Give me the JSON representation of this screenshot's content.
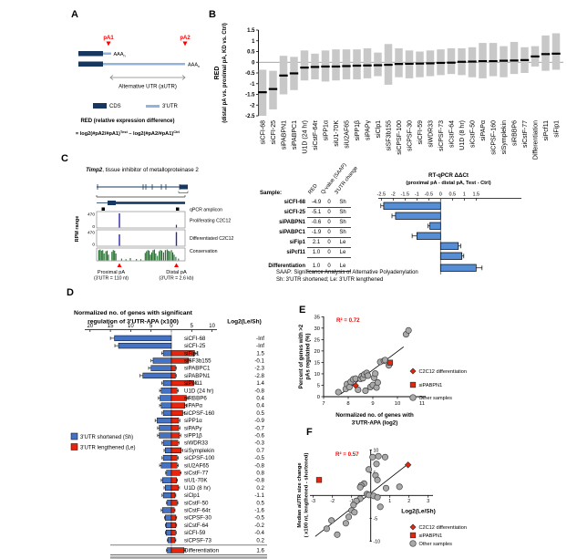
{
  "panels": {
    "A": {
      "label": "A",
      "pA1": "pA1",
      "pA2": "pA2",
      "polyA_base": "AAA",
      "polyA_sub": "n",
      "aUTR_label": "Alternative UTR (aUTR)",
      "legend_cds": "CDS",
      "legend_utr": "3'UTR",
      "red_title": "RED (relative expression difference)",
      "formula": {
        "p1": "= log2(#pA2/#pA1)",
        "sup1": "Test",
        "p2": " – log2(#pA2/#pA1)",
        "sup2": "Ctrl"
      },
      "colors": {
        "cds": "#17375E",
        "utr": "#95B3D7",
        "accent": "#FF0000"
      }
    },
    "B": {
      "label": "B"
    },
    "C": {
      "label": "C",
      "gene_name": "Timp2",
      "gene_desc": ", tissue inhibitor of metalloproteinase 2",
      "rpm_axis_label": "RPM range",
      "rpm_max": "470",
      "rpm_min": "0",
      "label_qpcr": "qPCR amplicon",
      "label_prolif": "Proliferating C2C12",
      "label_diff": "Differentiated C2C12",
      "label_cons": "Conservation",
      "proximal_label": "Proximal pA",
      "proximal_sub": "(3'UTR = 110 nt)",
      "distal_label": "Distal pA",
      "distal_sub": "(3'UTR = 2.6 kb)",
      "conservation_profile": [
        [
          0.02,
          0.9
        ],
        [
          0.035,
          0.95
        ],
        [
          0.05,
          0.85
        ],
        [
          0.065,
          0.9
        ],
        [
          0.08,
          0.6
        ],
        [
          0.1,
          0.8
        ],
        [
          0.115,
          0.85
        ],
        [
          0.13,
          0.5
        ],
        [
          0.17,
          0.75
        ],
        [
          0.185,
          0.9
        ],
        [
          0.2,
          0.85
        ],
        [
          0.215,
          0.6
        ],
        [
          0.28,
          0.15
        ],
        [
          0.33,
          0.1
        ],
        [
          0.38,
          0.2
        ],
        [
          0.45,
          0.12
        ],
        [
          0.5,
          0.1
        ],
        [
          0.55,
          0.65
        ],
        [
          0.565,
          0.8
        ],
        [
          0.58,
          0.9
        ],
        [
          0.595,
          0.85
        ],
        [
          0.61,
          0.5
        ],
        [
          0.625,
          0.7
        ],
        [
          0.64,
          0.9
        ],
        [
          0.655,
          0.95
        ],
        [
          0.67,
          0.6
        ],
        [
          0.69,
          0.4
        ],
        [
          0.71,
          0.8
        ],
        [
          0.725,
          0.9
        ],
        [
          0.74,
          0.85
        ],
        [
          0.76,
          0.7
        ],
        [
          0.78,
          0.9
        ],
        [
          0.8,
          0.95
        ],
        [
          0.815,
          0.85
        ],
        [
          0.83,
          0.8
        ],
        [
          0.85,
          0.9
        ],
        [
          0.865,
          0.7
        ],
        [
          0.88,
          0.5
        ],
        [
          0.9,
          0.3
        ],
        [
          0.93,
          0.15
        ]
      ],
      "table": {
        "col_sample": "Sample:",
        "col_red": "RED",
        "col_q": "Q-value (SAAP)",
        "col_change": "3'UTR change",
        "rows": [
          {
            "sample": "siCFI-68",
            "red": "-4.9",
            "q": "0",
            "change": "Sh"
          },
          {
            "sample": "siCFI-25",
            "red": "-5.1",
            "q": "0",
            "change": "Sh"
          },
          {
            "sample": "siPABPN1",
            "red": "-0.6",
            "q": "0",
            "change": "Sh"
          },
          {
            "sample": "siPABPC1",
            "red": "-1.9",
            "q": "0",
            "change": "Sh"
          },
          {
            "sample": "siFip1",
            "red": "2.1",
            "q": "0",
            "change": "Le"
          },
          {
            "sample": "siPcf11",
            "red": "1.0",
            "q": "0",
            "change": "Le"
          },
          {
            "sample": "Differentiation",
            "red": "1.0",
            "q": "0",
            "change": "Le"
          }
        ],
        "footnote1": "SAAP: Significance Analysis of Alternative Polyadenylation",
        "footnote2": "Sh: 3'UTR shortened; Le: 3'UTR lengthened"
      }
    },
    "D": {
      "label": "D",
      "title1": "Normalized no. of genes with significant",
      "title2": "regulation of 3'UTR-APA (x100)",
      "value_header": "Log2(Le/Sh)",
      "legend_sh": "3'UTR shortened (Sh)",
      "legend_le": "3'UTR lengthened (Le)"
    },
    "E": {
      "label": "E"
    },
    "F": {
      "label": "F"
    }
  },
  "legend_EF": {
    "items": [
      {
        "label": "C2C12 differentiation",
        "marker": "diamond",
        "color": "#E8240C"
      },
      {
        "label": "siPABPN1",
        "marker": "square",
        "color": "#E8240C"
      },
      {
        "label": "Other samples",
        "marker": "circle",
        "color": "#A9A9A9"
      }
    ]
  },
  "chart_data": [
    {
      "id": "B",
      "type": "boxplot",
      "ylabel_line1": "RED",
      "ylabel_line2": "(distal pA vs. proximal pA, KD vs. Ctrl)",
      "ylim": [
        -2.5,
        1.5
      ],
      "yticks": [
        1.5,
        1,
        0.5,
        0,
        -0.5,
        -1,
        -1.5,
        -2,
        -2.5
      ],
      "box_color": "#C8C8C8",
      "median_color": "#000000",
      "categories": [
        "siCFI-68",
        "siCFI-25",
        "siPABPN1",
        "siPABPC1",
        "U1D (24 hr)",
        "siCstF-64τ",
        "siPP1α",
        "siU1-70K",
        "siU2AF65",
        "siPP1β",
        "siPAPγ",
        "siClp1",
        "siSF3b155",
        "siCPSF-100",
        "siCPSF-30",
        "siCFI-59",
        "siWDR33",
        "siCPSF-73",
        "siCstF-64",
        "U1D (8 hr)",
        "siCstF-50",
        "siPAPα",
        "siCPSF-160",
        "siSymplekin",
        "siRBBP6",
        "siCstF-77",
        "Differentiation",
        "siPcf11",
        "siFip1"
      ],
      "medians": [
        -1.4,
        -1.25,
        -0.62,
        -0.52,
        -0.25,
        -0.22,
        -0.2,
        -0.2,
        -0.18,
        -0.16,
        -0.15,
        -0.14,
        -0.12,
        -0.08,
        -0.07,
        -0.06,
        -0.05,
        -0.03,
        -0.02,
        0.02,
        0.03,
        0.05,
        0.05,
        0.07,
        0.08,
        0.1,
        0.27,
        0.38,
        0.4
      ],
      "box_low": [
        -2.5,
        -2.2,
        -1.5,
        -1.3,
        -0.85,
        -0.8,
        -0.9,
        -0.85,
        -0.8,
        -0.8,
        -0.75,
        -0.65,
        -1.05,
        -0.7,
        -0.75,
        -0.7,
        -0.65,
        -0.6,
        -0.55,
        -0.6,
        -0.7,
        -0.75,
        -0.65,
        -0.7,
        -0.55,
        -0.5,
        -0.2,
        -0.4,
        -0.35
      ],
      "box_high": [
        -0.35,
        -0.4,
        0.3,
        0.25,
        0.55,
        0.4,
        0.55,
        0.6,
        0.6,
        0.6,
        0.65,
        0.45,
        0.85,
        0.65,
        0.55,
        0.5,
        0.55,
        0.6,
        0.65,
        0.65,
        0.7,
        0.9,
        0.9,
        0.75,
        0.95,
        0.7,
        0.75,
        1.25,
        1.35
      ]
    },
    {
      "id": "C_qpcr",
      "type": "bar",
      "orientation": "horizontal",
      "title_line1": "RT-qPCR ΔΔCt",
      "title_line2": "(proximal pA - distal pA, Test - Ctrl)",
      "xlim": [
        -2.5,
        1.5
      ],
      "xticks": [
        -2.5,
        -2,
        -1.5,
        -1,
        -0.5,
        0,
        0.5,
        1,
        1.5
      ],
      "categories": [
        "siCFI-68",
        "siCFI-25",
        "siPABPN1",
        "siPABPC1",
        "siFip1",
        "siPcf11",
        "Differentiation"
      ],
      "values": [
        -2.4,
        -1.9,
        -0.45,
        -1.0,
        0.75,
        0.9,
        1.5
      ],
      "errors": [
        0.12,
        0.15,
        0.08,
        0.2,
        0.1,
        0.08,
        0.25
      ],
      "bar_color": "#558ED5"
    },
    {
      "id": "D",
      "type": "bar",
      "variant": "diverging-horizontal",
      "axis_ticks": [
        20,
        15,
        10,
        5,
        0,
        5,
        10
      ],
      "sh_color": "#4472C4",
      "le_color": "#E8240C",
      "categories": [
        "siCFI-68",
        "siCFI-25",
        "siFip1",
        "siSF3b155",
        "siPABPC1",
        "siPABPN1",
        "siPcf11",
        "U1D (24 hr)",
        "siRBBP6",
        "siPAPα",
        "siCPSF-160",
        "siPP1α",
        "siPAPγ",
        "siPP1β",
        "siWDR33",
        "siSymplekin",
        "siCPSF-100",
        "siU2AF65",
        "siCstF-77",
        "siU1-70K",
        "U1D (8 hr)",
        "siClp1",
        "siCstF-50",
        "siCstF-64τ",
        "siCPSF-30",
        "siCstF-64",
        "siCFI-59",
        "siCPSF-73",
        "Differentiation"
      ],
      "sh_values": [
        14,
        13,
        2,
        4.5,
        5,
        7,
        2,
        2.5,
        2.8,
        2.5,
        2,
        3.5,
        3,
        3,
        2,
        1.5,
        2,
        2.5,
        1.2,
        2.2,
        1.5,
        2,
        1,
        2.2,
        1.5,
        1.3,
        1.3,
        0.8,
        1
      ],
      "le_values": [
        0,
        0,
        5.7,
        4.2,
        1,
        1,
        5.5,
        1.4,
        3.7,
        3.3,
        2.8,
        1.8,
        1.8,
        2,
        1.6,
        2.4,
        1.4,
        1.4,
        2.1,
        1.3,
        1.7,
        0.9,
        1.4,
        0.7,
        1.1,
        1.1,
        1,
        0.9,
        3.1
      ],
      "sh_errors": [
        1.0,
        0.9,
        0.4,
        0.5,
        0.6,
        0.7,
        0.4,
        0.4,
        0.4,
        0.4,
        0.3,
        0.5,
        0.4,
        0.4,
        0.3,
        0.3,
        0.3,
        0.4,
        0.2,
        0.3,
        0.3,
        0.3,
        0.2,
        0.3,
        0.2,
        0.2,
        0.2,
        0.2,
        0.2
      ],
      "le_errors": [
        0.1,
        0.1,
        0.6,
        0.5,
        0.2,
        0.2,
        0.6,
        0.3,
        0.4,
        0.4,
        0.4,
        0.3,
        0.3,
        0.3,
        0.3,
        0.4,
        0.3,
        0.3,
        0.3,
        0.2,
        0.3,
        0.2,
        0.2,
        0.2,
        0.2,
        0.2,
        0.2,
        0.2,
        0.4
      ],
      "log2_le_sh": [
        "-Inf",
        "-Inf",
        "1.5",
        "-0.1",
        "-2.3",
        "-2.8",
        "1.4",
        "-0.8",
        "0.4",
        "0.4",
        "0.5",
        "-0.9",
        "-0.7",
        "-0.6",
        "-0.3",
        "0.7",
        "-0.5",
        "-0.8",
        "0.8",
        "-0.8",
        "0.2",
        "-1.1",
        "0.5",
        "-1.6",
        "-0.5",
        "-0.2",
        "-0.4",
        "0.2",
        "1.6"
      ]
    },
    {
      "id": "E",
      "type": "scatter",
      "xlabel_line1": "Normalized no. of genes with",
      "xlabel_line2": "3'UTR-APA (log2)",
      "ylabel_line1": "Percent of genes with >2",
      "ylabel_line2": "pAs regulated (%)",
      "xlim": [
        7,
        11
      ],
      "ylim": [
        0,
        35
      ],
      "xticks": [
        7,
        8,
        9,
        10,
        11
      ],
      "yticks": [
        0,
        5,
        10,
        15,
        20,
        25,
        30,
        35
      ],
      "r2_label": "R² = 0.72",
      "r2_color": "#FF0000",
      "trend": [
        [
          7.7,
          1.2
        ],
        [
          10.25,
          21.8
        ]
      ],
      "other_points": [
        [
          7.6,
          2.0
        ],
        [
          7.9,
          3.4
        ],
        [
          7.95,
          5.5
        ],
        [
          8.05,
          4.2
        ],
        [
          8.1,
          6.5
        ],
        [
          8.2,
          7.6
        ],
        [
          8.3,
          7.9
        ],
        [
          8.4,
          3.0
        ],
        [
          8.5,
          7.8
        ],
        [
          8.55,
          9.0
        ],
        [
          8.6,
          8.1
        ],
        [
          8.65,
          9.7
        ],
        [
          8.7,
          2.6
        ],
        [
          8.75,
          10.4
        ],
        [
          8.8,
          9.2
        ],
        [
          8.9,
          4.2
        ],
        [
          9.0,
          5.1
        ],
        [
          9.05,
          8.3
        ],
        [
          9.1,
          10.1
        ],
        [
          9.15,
          4.0
        ],
        [
          9.2,
          6.2
        ],
        [
          9.3,
          15.2
        ],
        [
          9.45,
          15.7
        ],
        [
          9.5,
          16.0
        ],
        [
          9.65,
          13.7
        ],
        [
          10.35,
          27.3
        ],
        [
          10.45,
          29.0
        ]
      ],
      "diff_point": [
        8.3,
        4.9
      ],
      "pabpn1_point": [
        9.7,
        14.9
      ]
    },
    {
      "id": "F",
      "type": "scatter",
      "xlabel": "Log2(Le/Sh)",
      "ylabel_line1": "Median aUTR size change",
      "ylabel_line2": "( x100 nt, lengthened - shortened)",
      "xlim": [
        -3,
        3
      ],
      "ylim": [
        -10,
        10
      ],
      "xticks": [
        -3,
        -2,
        -1,
        1,
        2,
        3
      ],
      "yticks": [
        10,
        5,
        -5,
        -10
      ],
      "r2_label": "R² = 0.57",
      "r2_color": "#FF0000",
      "trend": [
        [
          -2.9,
          -9.0
        ],
        [
          1.95,
          6.9
        ]
      ],
      "other_points": [
        [
          0.1,
          8.4
        ],
        [
          0.4,
          8.6
        ],
        [
          0.75,
          8.4
        ],
        [
          0.3,
          6.9
        ],
        [
          -0.1,
          5.7
        ],
        [
          0.25,
          4.4
        ],
        [
          0.35,
          3.4
        ],
        [
          -0.35,
          2.6
        ],
        [
          -0.5,
          2.2
        ],
        [
          -0.55,
          1.8
        ],
        [
          0.8,
          1.6
        ],
        [
          1.5,
          1.9
        ],
        [
          -0.2,
          0.3
        ],
        [
          -0.1,
          0.1
        ],
        [
          0.15,
          -0.1
        ],
        [
          0.35,
          -0.4
        ],
        [
          -0.55,
          -0.7
        ],
        [
          -0.75,
          -1.2
        ],
        [
          -0.9,
          -2.1
        ],
        [
          0.5,
          -2.5
        ],
        [
          -1.0,
          -3.3
        ],
        [
          -0.85,
          -3.7
        ],
        [
          -1.15,
          -4.7
        ],
        [
          -2.05,
          -5.5
        ],
        [
          -1.3,
          -6.1
        ],
        [
          -2.3,
          -7.3
        ],
        [
          -1.75,
          -8.6
        ]
      ],
      "diff_point": [
        1.95,
        6.7
      ],
      "pabpn1_point": [
        -2.7,
        3.4
      ]
    }
  ]
}
